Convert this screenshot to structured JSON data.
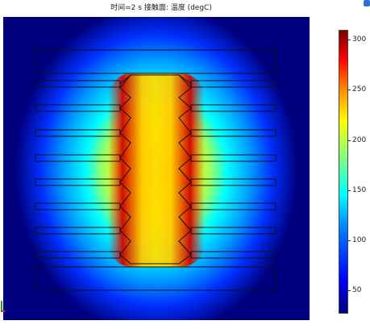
{
  "plot": {
    "title": "时间=2 s  接触面: 温度 (degC)",
    "colorbar": {
      "ticks": [
        {
          "label": "300",
          "value": 300
        },
        {
          "label": "250",
          "value": 250
        },
        {
          "label": "200",
          "value": 200
        },
        {
          "label": "150",
          "value": 150
        },
        {
          "label": "100",
          "value": 100
        },
        {
          "label": "50",
          "value": 50
        }
      ],
      "range": [
        28,
        310
      ],
      "colormap": [
        "#00007f",
        "#0000ff",
        "#007fff",
        "#00ffff",
        "#7fff7f",
        "#ffff00",
        "#ff7f00",
        "#ff0000",
        "#7f0000"
      ]
    }
  }
}
